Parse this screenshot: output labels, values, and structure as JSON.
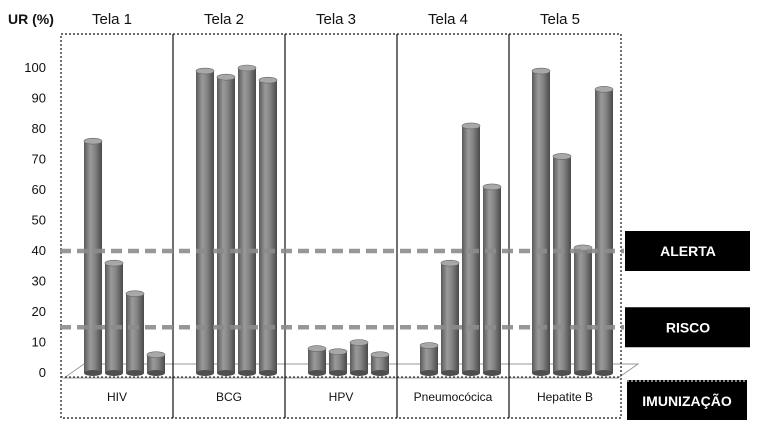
{
  "chart_data": {
    "type": "bar",
    "ylabel": "UR (%)",
    "ylim": [
      0,
      100
    ],
    "yticks": [
      0,
      10,
      20,
      30,
      40,
      50,
      60,
      70,
      80,
      90,
      100
    ],
    "groups": [
      {
        "panel": "Tela 1",
        "category": "HIV",
        "values": [
          76,
          36,
          26,
          6
        ]
      },
      {
        "panel": "Tela 2",
        "category": "BCG",
        "values": [
          99,
          97,
          100,
          96
        ]
      },
      {
        "panel": "Tela 3",
        "category": "HPV",
        "values": [
          8,
          7,
          10,
          6
        ]
      },
      {
        "panel": "Tela 4",
        "category": "Pneumocócica",
        "values": [
          9,
          36,
          81,
          61
        ]
      },
      {
        "panel": "Tela 5",
        "category": "Hepatite B",
        "values": [
          99,
          71,
          41,
          93
        ]
      }
    ],
    "thresholds": [
      {
        "label": "ALERTA",
        "value": 40
      },
      {
        "label": "RISCO",
        "value": 15
      }
    ],
    "axis_box_label": "IMUNIZAÇÃO",
    "colors": {
      "bar": "#7a7a7a",
      "threshold_line": "#8c8c8c",
      "label_box": "#000000"
    }
  }
}
